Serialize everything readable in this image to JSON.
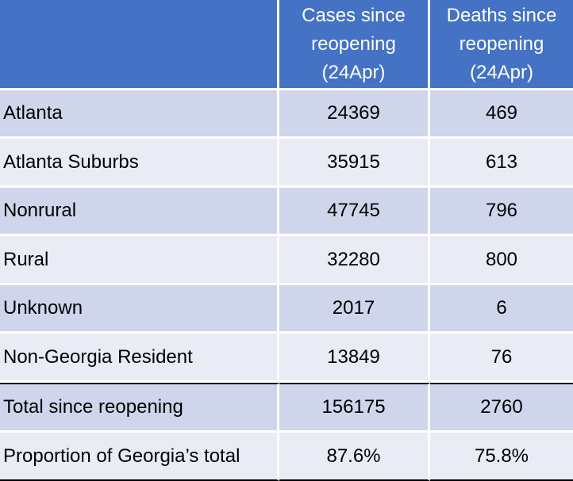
{
  "header": {
    "blank": "",
    "cases": "Cases since reopening (24Apr)",
    "deaths": "Deaths since reopening (24Apr)"
  },
  "rows": [
    {
      "label": "Atlanta",
      "cases": "24369",
      "deaths": "469"
    },
    {
      "label": "Atlanta Suburbs",
      "cases": "35915",
      "deaths": "613"
    },
    {
      "label": "Nonrural",
      "cases": "47745",
      "deaths": "796"
    },
    {
      "label": "Rural",
      "cases": "32280",
      "deaths": "800"
    },
    {
      "label": "Unknown",
      "cases": "2017",
      "deaths": "6"
    },
    {
      "label": "Non-Georgia Resident",
      "cases": "13849",
      "deaths": "76"
    }
  ],
  "total": {
    "label": "Total since reopening",
    "cases": "156175",
    "deaths": "2760"
  },
  "proportion": {
    "label": "Proportion of Georgia’s total",
    "cases": "87.6%",
    "deaths": "75.8%"
  },
  "colors": {
    "header": "#4472c4",
    "row_dark": "#cfd5ea",
    "row_light": "#e9ebf5"
  }
}
